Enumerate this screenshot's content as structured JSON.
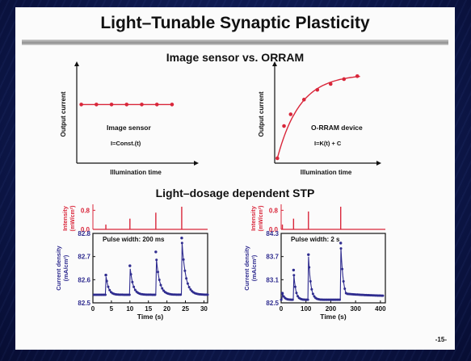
{
  "slide": {
    "title": "Light–Tunable Synaptic Plasticity",
    "section1": "Image sensor vs. ORRAM",
    "section2": "Light–dosage dependent STP",
    "page_number": "-15-"
  },
  "colors": {
    "red": "#d9263a",
    "blue": "#2f2c8f",
    "axis": "#111111"
  },
  "chart_data": [
    {
      "type": "line",
      "ylabel": "Output current",
      "xlabel": "Illumination time",
      "annotation": "Image sensor",
      "equation": "I=Const.(t)",
      "series": [
        {
          "x": [
            0,
            1,
            2,
            3,
            4,
            5,
            6
          ],
          "y": [
            0.6,
            0.6,
            0.6,
            0.6,
            0.6,
            0.6,
            0.6
          ]
        }
      ],
      "xlim": [
        -0.3,
        7.5
      ],
      "ylim": [
        0,
        1
      ]
    },
    {
      "type": "line",
      "ylabel": "Output current",
      "xlabel": "Illumination time",
      "annotation": "O-RRAM device",
      "equation": "I=K(t) + C",
      "series": [
        {
          "x": [
            0,
            0.5,
            1,
            2,
            3,
            4,
            5,
            6
          ],
          "y": [
            0.05,
            0.38,
            0.5,
            0.65,
            0.75,
            0.81,
            0.86,
            0.89
          ]
        }
      ],
      "xlim": [
        -0.2,
        7.5
      ],
      "ylim": [
        0,
        1
      ]
    },
    {
      "type": "line",
      "intensity_label": "Intensity (mW/cm²)",
      "intensity_ticks": [
        "0.8",
        "0.0"
      ],
      "intensity_ylim": [
        0,
        1.05
      ],
      "pulses": [
        {
          "t": 3.5,
          "intensity": 0.2
        },
        {
          "t": 10,
          "intensity": 0.45
        },
        {
          "t": 17,
          "intensity": 0.7
        },
        {
          "t": 24,
          "intensity": 0.95
        }
      ],
      "annotation": "Pulse width: 200 ms",
      "ylabel": "Current density (mA/cm²)",
      "xlabel": "Time (s)",
      "xlim": [
        0,
        31
      ],
      "ylim": [
        82.5,
        82.8
      ],
      "xticks": [
        "0",
        "5",
        "10",
        "15",
        "20",
        "25",
        "30"
      ],
      "yticks": [
        "82.5",
        "82.6",
        "82.7",
        "82.8"
      ],
      "series": [
        {
          "baseline": 82.535,
          "spikes": [
            {
              "t": 3.5,
              "peak": 82.62,
              "tau": 0.7
            },
            {
              "t": 10,
              "peak": 82.66,
              "tau": 0.8
            },
            {
              "t": 17,
              "peak": 82.72,
              "tau": 0.9
            },
            {
              "t": 24,
              "peak": 82.78,
              "tau": 1.0
            }
          ],
          "t_end": 31
        }
      ]
    },
    {
      "type": "line",
      "intensity_label": "Intensity (mW/cm²)",
      "intensity_ticks": [
        "0.8",
        "0.0"
      ],
      "intensity_ylim": [
        0,
        1.05
      ],
      "pulses": [
        {
          "t": 5,
          "intensity": 0.2
        },
        {
          "t": 50,
          "intensity": 0.45
        },
        {
          "t": 110,
          "intensity": 0.75
        },
        {
          "t": 240,
          "intensity": 0.95
        }
      ],
      "annotation": "Pulse width: 2 s",
      "ylabel": "Current density (mA/cm²)",
      "xlabel": "Time (s)",
      "xlim": [
        0,
        420
      ],
      "ylim": [
        82.5,
        84.3
      ],
      "xticks": [
        "0",
        "100",
        "200",
        "300",
        "400"
      ],
      "yticks": [
        "82.5",
        "83.1",
        "83.7",
        "84.3"
      ],
      "series": [
        {
          "baseline": 82.58,
          "spikes": [
            {
              "t": 5,
              "peak": 82.75,
              "tau": 8
            },
            {
              "t": 50,
              "peak": 83.35,
              "tau": 8
            },
            {
              "t": 110,
              "peak": 83.75,
              "tau": 9
            },
            {
              "t": 240,
              "peak": 84.05,
              "tau": 10
            }
          ],
          "tail": {
            "after": 240,
            "level": 82.75,
            "decay": 0.7
          },
          "t_end": 410
        }
      ]
    }
  ]
}
